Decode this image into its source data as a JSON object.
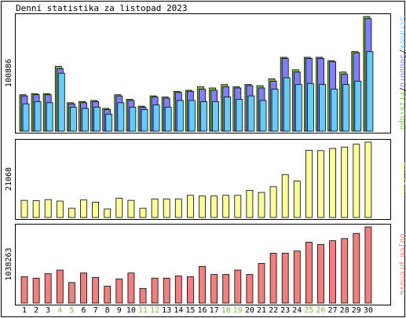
{
  "title": "Denní statistika za listopad 2023",
  "colors": {
    "access": "#80c040",
    "files": "#8080ff",
    "pages": "#66ccff",
    "visitors": "#ffff99",
    "traffic": "#f08080",
    "weekend": "#80c040",
    "weekday": "#000000"
  },
  "chart_data": [
    {
      "type": "bar",
      "panel": "top",
      "ymax_label": "100886",
      "legend": [
        "Stránek",
        "/",
        "Souborů",
        "/",
        "Přístupů"
      ],
      "categories": [
        "1",
        "2",
        "3",
        "4",
        "5",
        "6",
        "7",
        "8",
        "9",
        "10",
        "11",
        "12",
        "13",
        "14",
        "15",
        "16",
        "17",
        "18",
        "19",
        "20",
        "21",
        "22",
        "23",
        "24",
        "25",
        "26",
        "27",
        "28",
        "29",
        "30"
      ],
      "weekend_days": [
        "4",
        "5",
        "11",
        "12",
        "18",
        "19",
        "25",
        "26"
      ],
      "ylim": [
        0,
        100886
      ],
      "series": [
        {
          "name": "Přístupů",
          "values": [
            32000,
            33000,
            33000,
            57000,
            25000,
            26000,
            27000,
            20000,
            32000,
            28000,
            22000,
            31000,
            30000,
            35000,
            36000,
            39000,
            38000,
            41000,
            39000,
            41000,
            40000,
            46000,
            65000,
            54000,
            65000,
            65000,
            62000,
            52000,
            70000,
            100886
          ]
        },
        {
          "name": "Souborů",
          "values": [
            31000,
            32000,
            32000,
            55000,
            24000,
            25000,
            26000,
            19000,
            31000,
            27000,
            21000,
            30000,
            29000,
            34000,
            35000,
            37000,
            36000,
            39000,
            38000,
            40000,
            38000,
            44000,
            64000,
            52000,
            64000,
            64000,
            61000,
            50000,
            69000,
            99000
          ]
        },
        {
          "name": "Stránek",
          "values": [
            24000,
            26000,
            25000,
            51000,
            21000,
            20000,
            21000,
            15000,
            25000,
            21000,
            19000,
            23000,
            21000,
            27000,
            27000,
            26000,
            26000,
            30000,
            28000,
            31000,
            27000,
            37000,
            47000,
            41000,
            42000,
            41000,
            37000,
            41000,
            44000,
            70000
          ]
        }
      ]
    },
    {
      "type": "bar",
      "panel": "middle",
      "ymax_label": "21068",
      "legend": [
        "Návštěv"
      ],
      "categories": [
        "1",
        "2",
        "3",
        "4",
        "5",
        "6",
        "7",
        "8",
        "9",
        "10",
        "11",
        "12",
        "13",
        "14",
        "15",
        "16",
        "17",
        "18",
        "19",
        "20",
        "21",
        "22",
        "23",
        "24",
        "25",
        "26",
        "27",
        "28",
        "29",
        "30"
      ],
      "ylim": [
        0,
        21068
      ],
      "series": [
        {
          "name": "Návštěv",
          "values": [
            4800,
            4700,
            5000,
            4600,
            2600,
            4900,
            4300,
            2400,
            5400,
            4800,
            2600,
            5200,
            5200,
            5200,
            6200,
            6000,
            6000,
            6200,
            6200,
            7600,
            7000,
            8600,
            12000,
            10200,
            18800,
            18700,
            19300,
            19700,
            20500,
            21068
          ]
        }
      ]
    },
    {
      "type": "bar",
      "panel": "bottom",
      "ymax_label": "1038263",
      "legend": [
        "Objem přenosu"
      ],
      "categories": [
        "1",
        "2",
        "3",
        "4",
        "5",
        "6",
        "7",
        "8",
        "9",
        "10",
        "11",
        "12",
        "13",
        "14",
        "15",
        "16",
        "17",
        "18",
        "19",
        "20",
        "21",
        "22",
        "23",
        "24",
        "25",
        "26",
        "27",
        "28",
        "29",
        "30"
      ],
      "ylim": [
        0,
        1038263
      ],
      "series": [
        {
          "name": "Objem přenosu",
          "values": [
            360000,
            340000,
            400000,
            450000,
            280000,
            410000,
            350000,
            230000,
            330000,
            410000,
            200000,
            340000,
            340000,
            370000,
            360000,
            500000,
            390000,
            390000,
            450000,
            390000,
            540000,
            680000,
            680000,
            710000,
            830000,
            800000,
            850000,
            880000,
            950000,
            1038263
          ]
        }
      ]
    }
  ]
}
